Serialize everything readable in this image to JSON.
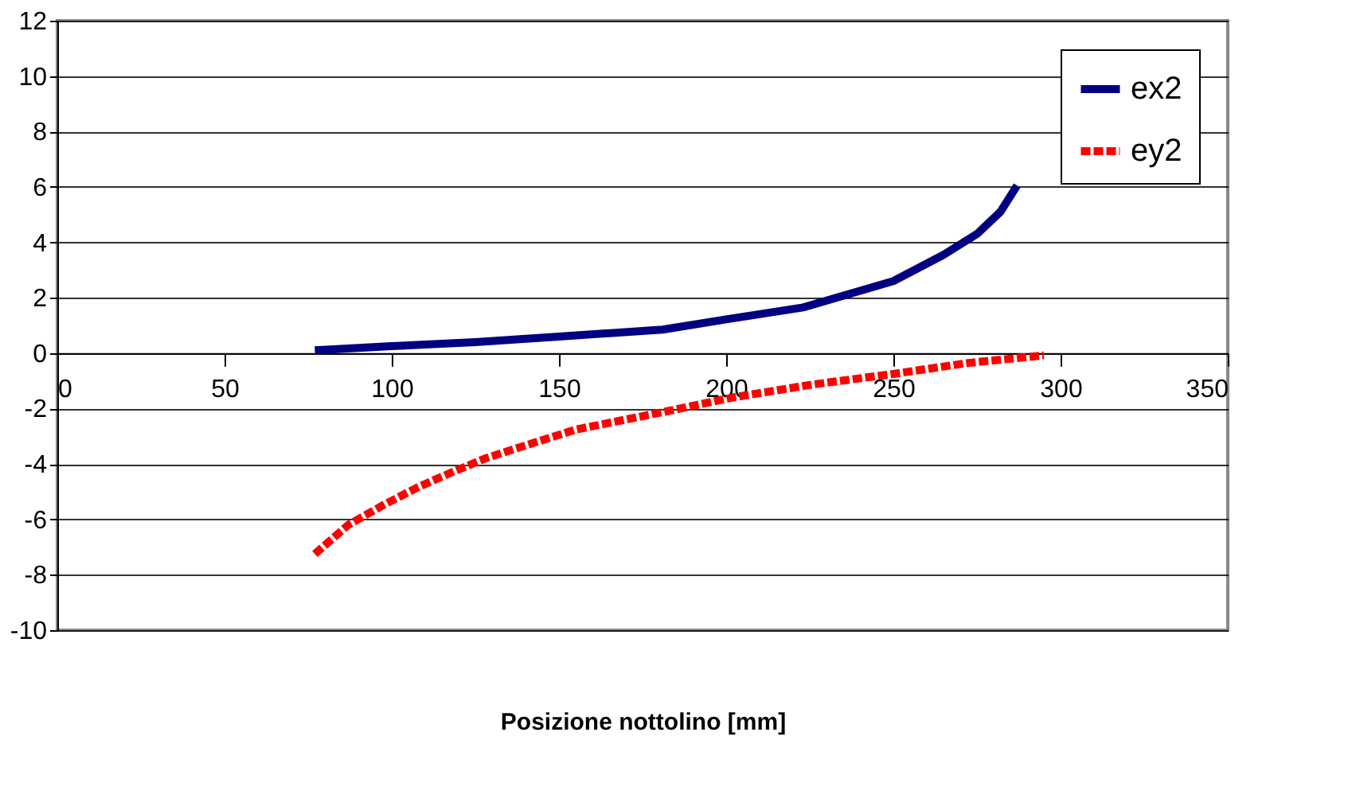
{
  "chart_data": {
    "type": "line",
    "xlabel": "Posizione nottolino [mm]",
    "xlim": [
      0,
      350
    ],
    "xticks": [
      0,
      50,
      100,
      150,
      200,
      250,
      300,
      350
    ],
    "ylim": [
      -10,
      12
    ],
    "yticks": [
      -10,
      -8,
      -6,
      -4,
      -2,
      0,
      2,
      4,
      6,
      8,
      10,
      12
    ],
    "grid": "y",
    "legend": "top right",
    "marker": "none",
    "series": [
      {
        "name": "ex2",
        "color": "#000080",
        "line_style": "solid",
        "x": [
          77,
          100,
          125,
          150,
          181,
          200,
          223,
          250,
          265,
          275,
          282,
          287
        ],
        "values": [
          0.1,
          0.25,
          0.4,
          0.6,
          0.85,
          1.22,
          1.65,
          2.6,
          3.55,
          4.3,
          5.1,
          6.05
        ]
      },
      {
        "name": "ey2",
        "color": "#ff0000",
        "line_style": "dashed",
        "x": [
          77,
          87,
          98,
          108,
          118,
          128,
          139,
          155,
          181,
          202,
          226,
          250,
          272,
          295
        ],
        "values": [
          -7.25,
          -6.2,
          -5.45,
          -4.83,
          -4.3,
          -3.8,
          -3.37,
          -2.76,
          -2.13,
          -1.6,
          -1.13,
          -0.75,
          -0.36,
          -0.08
        ]
      }
    ]
  }
}
